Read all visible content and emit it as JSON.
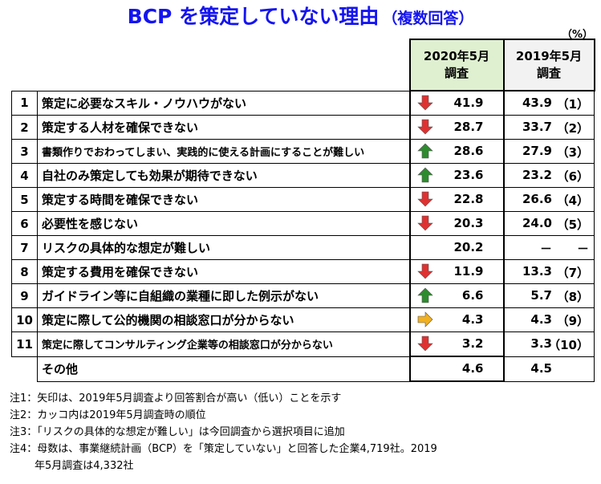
{
  "title": "BCP を策定していない理由",
  "subtitle": "（複数回答）",
  "unit": "（%）",
  "headers": {
    "col2020_line1": "2020年5月",
    "col2020_line2": "調査",
    "col2019_line1": "2019年5月",
    "col2019_line2": "調査"
  },
  "colors": {
    "title": "#1414f0",
    "down_arrow": "#e03131",
    "up_arrow": "#2e8b2e",
    "flat_arrow": "#f0b020",
    "header2020_bg": "#dff0d0"
  },
  "chart_data": {
    "type": "table",
    "rows": [
      {
        "no": "1",
        "item": "策定に必要なスキル・ノウハウがない",
        "v2020": "41.9",
        "arrow": "down",
        "v2019": "43.9",
        "rank2019": "（1）"
      },
      {
        "no": "2",
        "item": "策定する人材を確保できない",
        "v2020": "28.7",
        "arrow": "down",
        "v2019": "33.7",
        "rank2019": "（2）"
      },
      {
        "no": "3",
        "item": "書類作りでおわってしまい、実践的に使える計画にすることが難しい",
        "v2020": "28.6",
        "arrow": "up",
        "v2019": "27.9",
        "rank2019": "（3）"
      },
      {
        "no": "4",
        "item": "自社のみ策定しても効果が期待できない",
        "v2020": "23.6",
        "arrow": "up",
        "v2019": "23.2",
        "rank2019": "（6）"
      },
      {
        "no": "5",
        "item": "策定する時間を確保できない",
        "v2020": "22.8",
        "arrow": "down",
        "v2019": "26.6",
        "rank2019": "（4）"
      },
      {
        "no": "6",
        "item": "必要性を感じない",
        "v2020": "20.3",
        "arrow": "down",
        "v2019": "24.0",
        "rank2019": "（5）"
      },
      {
        "no": "7",
        "item": "リスクの具体的な想定が難しい",
        "v2020": "20.2",
        "arrow": "none",
        "v2019": "－",
        "rank2019": "－"
      },
      {
        "no": "8",
        "item": "策定する費用を確保できない",
        "v2020": "11.9",
        "arrow": "down",
        "v2019": "13.3",
        "rank2019": "（7）"
      },
      {
        "no": "9",
        "item": "ガイドライン等に自組織の業種に即した例示がない",
        "v2020": "6.6",
        "arrow": "up",
        "v2019": "5.7",
        "rank2019": "（8）"
      },
      {
        "no": "10",
        "item": "策定に際して公的機関の相談窓口が分からない",
        "v2020": "4.3",
        "arrow": "flat",
        "v2019": "4.3",
        "rank2019": "（9）"
      },
      {
        "no": "11",
        "item": "策定に際してコンサルティング企業等の相談窓口が分からない",
        "v2020": "3.2",
        "arrow": "down",
        "v2019": "3.3",
        "rank2019": "（10）"
      }
    ],
    "other": {
      "item": "その他",
      "v2020": "4.6",
      "v2019": "4.5"
    }
  },
  "notes": [
    "注1：矢印は、2019年5月調査より回答割合が高い（低い）ことを示す",
    "注2：カッコ内は2019年5月調査時の順位",
    "注3：「リスクの具体的な想定が難しい」は今回調査から選択項目に追加",
    "注4：母数は、事業継続計画（BCP）を「策定していない」と回答した企業4,719社。2019",
    "年5月調査は4,332社"
  ]
}
